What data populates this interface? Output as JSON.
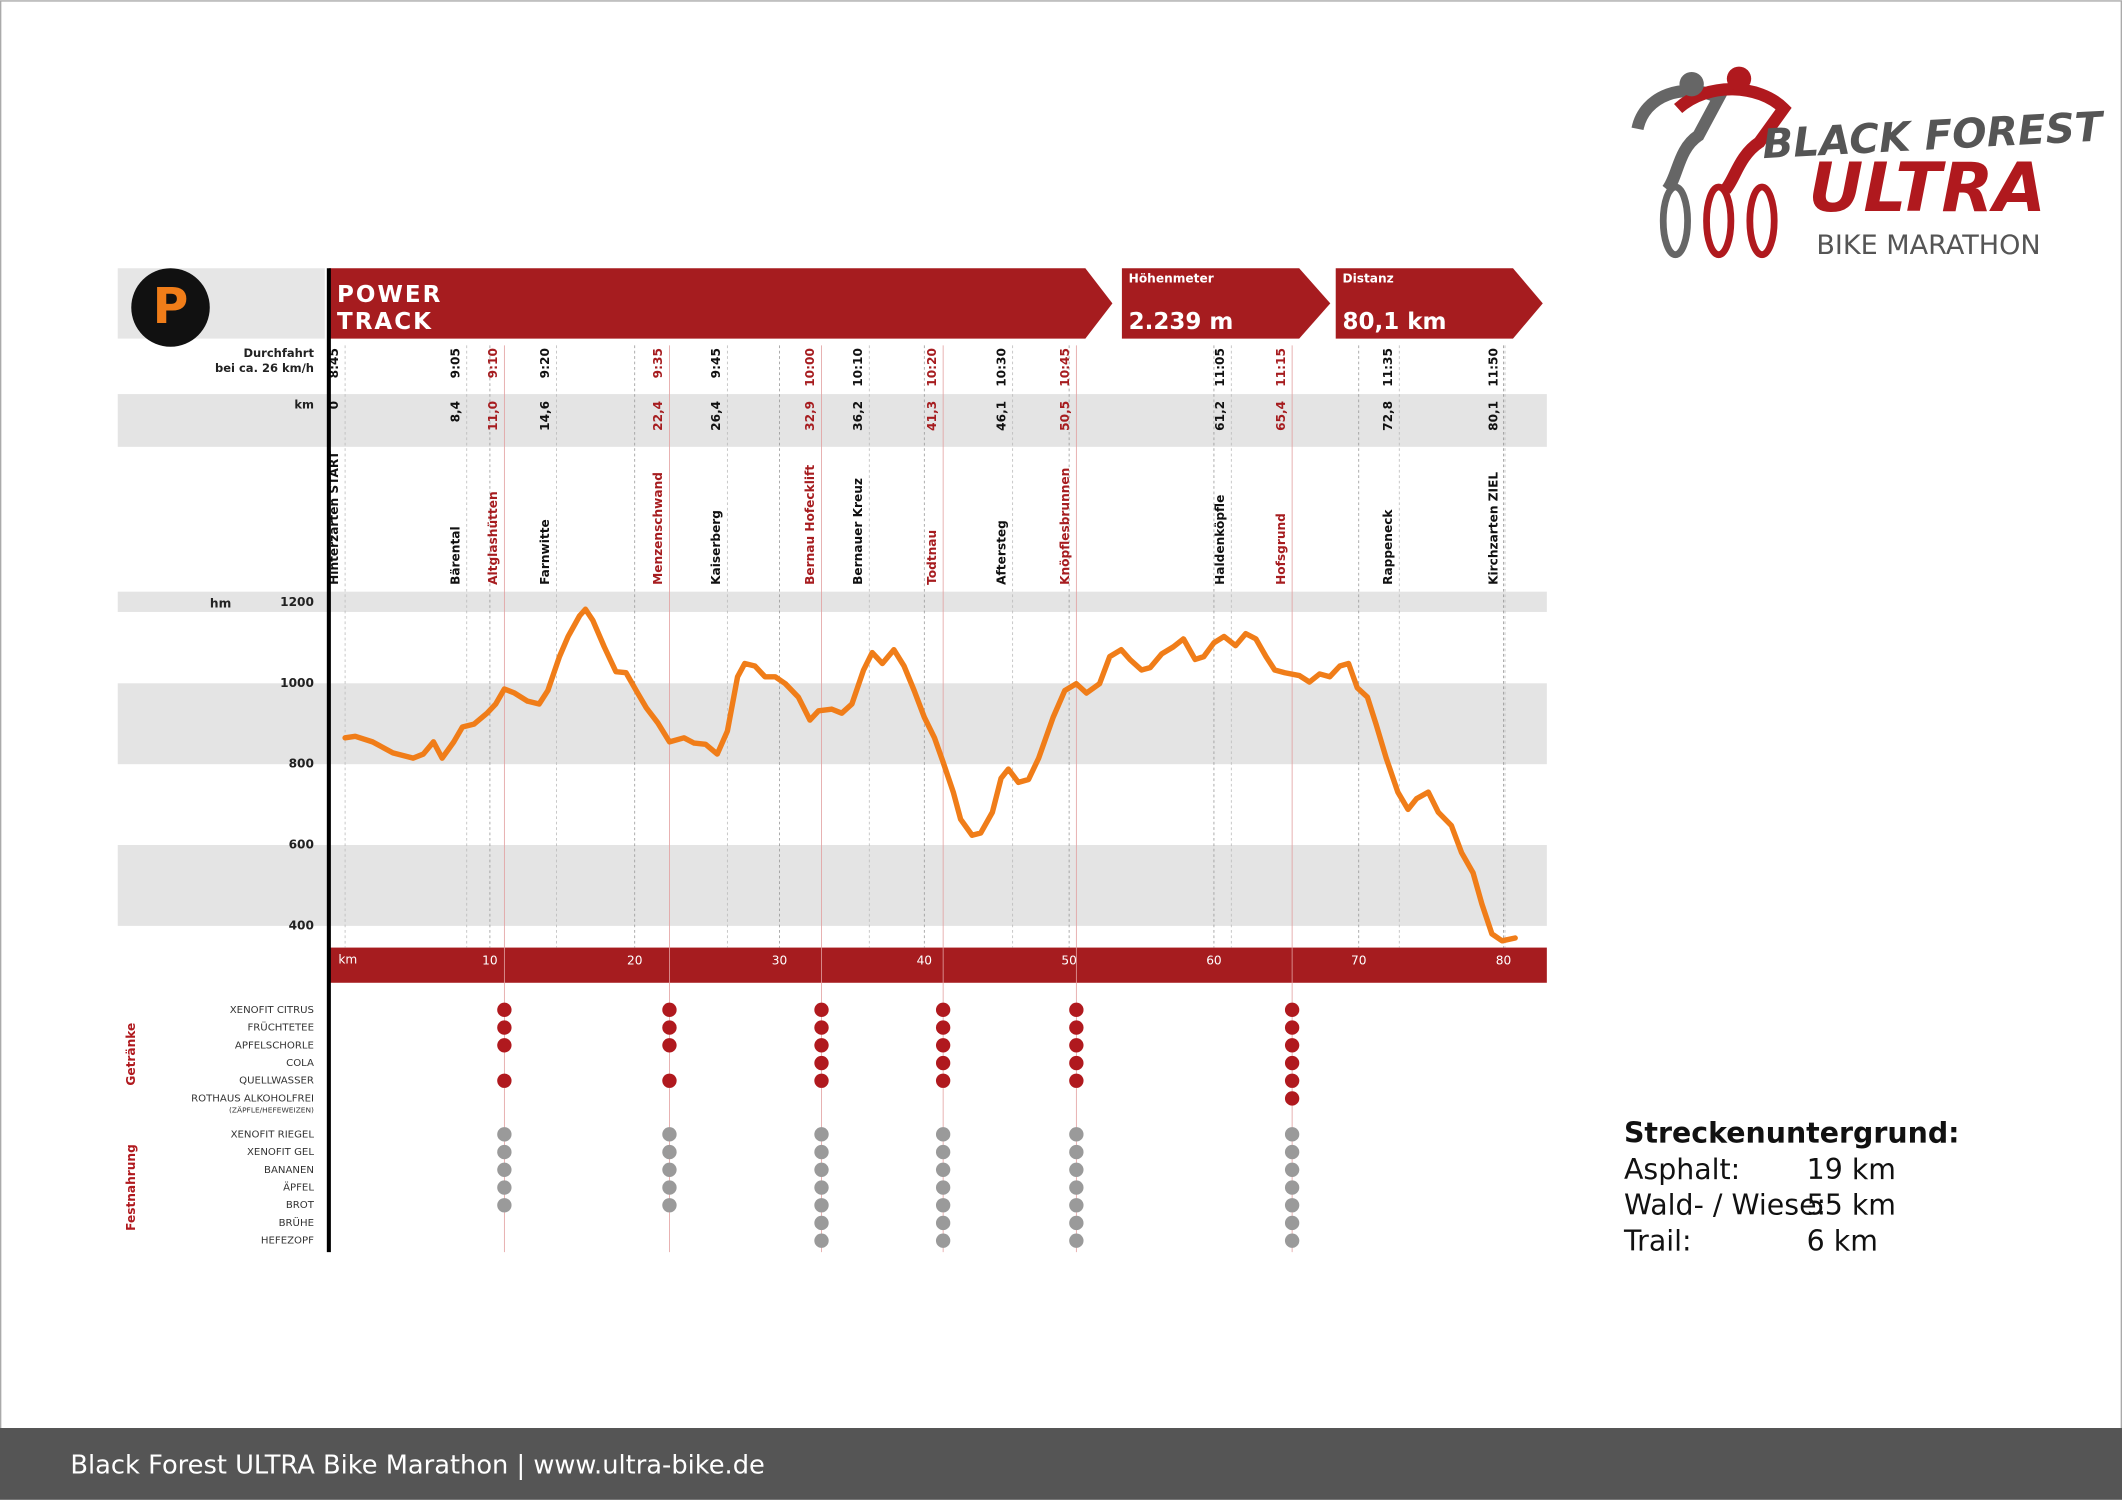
{
  "header": {
    "badge": "P",
    "title_lines": [
      "POWER",
      "TRACK"
    ],
    "elevation_gain": {
      "label": "Höhenmeter",
      "value": "2.239 m"
    },
    "distance": {
      "label": "Distanz",
      "value": "80,1 km"
    }
  },
  "logo": {
    "line1": "BLACK FOREST",
    "line2": "ULTRA",
    "line3": "BIKE MARATHON"
  },
  "rows": {
    "time_label_lines": [
      "Durchfahrt",
      "bei ca. 26 km/h"
    ],
    "km_label": "km"
  },
  "checkpoints": [
    {
      "name": "Hinterzarten START",
      "km": 0,
      "km_label": "0",
      "time": "8:45",
      "aid": false
    },
    {
      "name": "Bärental",
      "km": 8.4,
      "km_label": "8,4",
      "time": "9:05",
      "aid": false
    },
    {
      "name": "Altglashütten",
      "km": 11.0,
      "km_label": "11,0",
      "time": "9:10",
      "aid": true
    },
    {
      "name": "Farnwitte",
      "km": 14.6,
      "km_label": "14,6",
      "time": "9:20",
      "aid": false
    },
    {
      "name": "Menzenschwand",
      "km": 22.4,
      "km_label": "22,4",
      "time": "9:35",
      "aid": true
    },
    {
      "name": "Kaiserberg",
      "km": 26.4,
      "km_label": "26,4",
      "time": "9:45",
      "aid": false
    },
    {
      "name": "Bernau Hofecklift",
      "km": 32.9,
      "km_label": "32,9",
      "time": "10:00",
      "aid": true
    },
    {
      "name": "Bernauer Kreuz",
      "km": 36.2,
      "km_label": "36,2",
      "time": "10:10",
      "aid": false
    },
    {
      "name": "Todtnau",
      "km": 41.3,
      "km_label": "41,3",
      "time": "10:20",
      "aid": true
    },
    {
      "name": "Aftersteg",
      "km": 46.1,
      "km_label": "46,1",
      "time": "10:30",
      "aid": false
    },
    {
      "name": "Knöpflesbrunnen",
      "km": 50.5,
      "km_label": "50,5",
      "time": "10:45",
      "aid": true
    },
    {
      "name": "Haldenköpfle",
      "km": 61.2,
      "km_label": "61,2",
      "time": "11:05",
      "aid": false
    },
    {
      "name": "Hofsgrund",
      "km": 65.4,
      "km_label": "65,4",
      "time": "11:15",
      "aid": true
    },
    {
      "name": "Rappeneck",
      "km": 72.8,
      "km_label": "72,8",
      "time": "11:35",
      "aid": false
    },
    {
      "name": "Kirchzarten ZIEL",
      "km": 80.1,
      "km_label": "80,1",
      "time": "11:50",
      "aid": false
    }
  ],
  "chart_data": {
    "type": "line",
    "y_label": "hm",
    "x_label": "km",
    "color": "#f07d19",
    "x": [
      0,
      0.7,
      1.9,
      3.3,
      4.7,
      5.4,
      6.1,
      6.7,
      7.5,
      8.1,
      8.9,
      9.8,
      10.4,
      11.0,
      11.7,
      12.6,
      13.4,
      14.0,
      14.8,
      15.4,
      16.2,
      16.6,
      17.1,
      17.9,
      18.7,
      19.4,
      20.1,
      20.8,
      21.6,
      22.4,
      23.4,
      24.1,
      24.9,
      25.7,
      26.4,
      27.1,
      27.6,
      28.3,
      29.0,
      29.7,
      30.4,
      31.3,
      32.1,
      32.7,
      33.6,
      34.3,
      35.0,
      35.8,
      36.4,
      37.1,
      37.9,
      38.6,
      39.3,
      40.0,
      40.7,
      41.3,
      42.0,
      42.5,
      43.3,
      43.9,
      44.7,
      45.3,
      45.8,
      46.5,
      47.2,
      47.9,
      48.9,
      49.7,
      50.5,
      51.2,
      52.1,
      52.8,
      53.6,
      54.2,
      55.0,
      55.6,
      56.4,
      57.2,
      57.9,
      58.7,
      59.3,
      60.0,
      60.7,
      61.5,
      62.2,
      62.9,
      63.6,
      64.2,
      64.9,
      65.9,
      66.6,
      67.3,
      68.0,
      68.7,
      69.3,
      69.9,
      70.6,
      71.2,
      71.9,
      72.7,
      73.4,
      74.0,
      74.8,
      75.5,
      76.4,
      77.1,
      77.9,
      78.5,
      79.2,
      79.9,
      80.8
    ],
    "values": [
      865,
      869,
      855,
      828,
      815,
      825,
      855,
      815,
      855,
      892,
      899,
      926,
      949,
      986,
      976,
      956,
      949,
      982,
      1066,
      1116,
      1167,
      1183,
      1156,
      1090,
      1029,
      1026,
      982,
      939,
      902,
      855,
      865,
      852,
      849,
      825,
      882,
      1016,
      1049,
      1043,
      1016,
      1016,
      999,
      966,
      909,
      932,
      936,
      926,
      949,
      1033,
      1076,
      1049,
      1083,
      1043,
      982,
      916,
      865,
      805,
      731,
      664,
      624,
      630,
      681,
      765,
      788,
      755,
      762,
      815,
      916,
      982,
      999,
      976,
      999,
      1066,
      1083,
      1059,
      1033,
      1039,
      1073,
      1090,
      1110,
      1059,
      1066,
      1100,
      1116,
      1093,
      1123,
      1110,
      1066,
      1033,
      1026,
      1019,
      1003,
      1023,
      1016,
      1043,
      1049,
      989,
      966,
      899,
      815,
      731,
      688,
      715,
      731,
      681,
      648,
      581,
      531,
      454,
      380,
      363,
      370
    ],
    "xlim": [
      -1,
      83
    ],
    "xticks": [
      10,
      20,
      30,
      40,
      50,
      60,
      70,
      80
    ],
    "ylim": [
      350,
      1225
    ],
    "yticks": [
      400,
      600,
      800,
      1000,
      1200
    ]
  },
  "supplies": [
    {
      "group": "Getränke",
      "color": "#b0191e",
      "items": [
        {
          "name": "XENOFIT CITRUS",
          "available": [
            true,
            true,
            true,
            true,
            true,
            true
          ]
        },
        {
          "name": "FRÜCHTETEE",
          "available": [
            true,
            true,
            true,
            true,
            true,
            true
          ]
        },
        {
          "name": "APFELSCHORLE",
          "available": [
            true,
            true,
            true,
            true,
            true,
            true
          ]
        },
        {
          "name": "COLA",
          "available": [
            false,
            false,
            true,
            true,
            true,
            true
          ]
        },
        {
          "name": "QUELLWASSER",
          "available": [
            true,
            true,
            true,
            true,
            true,
            true
          ]
        },
        {
          "name": "ROTHAUS ALKOHOLFREI",
          "note": "(ZÄPFLE/HEFEWEIZEN)",
          "available": [
            false,
            false,
            false,
            false,
            false,
            true
          ]
        }
      ]
    },
    {
      "group": "Festnahrung",
      "color": "#9a9a9a",
      "items": [
        {
          "name": "XENOFIT RIEGEL",
          "available": [
            true,
            true,
            true,
            true,
            true,
            true
          ]
        },
        {
          "name": "XENOFIT GEL",
          "available": [
            true,
            true,
            true,
            true,
            true,
            true
          ]
        },
        {
          "name": "BANANEN",
          "available": [
            true,
            true,
            true,
            true,
            true,
            true
          ]
        },
        {
          "name": "ÄPFEL",
          "available": [
            true,
            true,
            true,
            true,
            true,
            true
          ]
        },
        {
          "name": "BROT",
          "available": [
            true,
            true,
            true,
            true,
            true,
            true
          ]
        },
        {
          "name": "BRÜHE",
          "available": [
            false,
            false,
            true,
            true,
            true,
            true
          ]
        },
        {
          "name": "HEFEZOPF",
          "available": [
            false,
            false,
            true,
            true,
            true,
            true
          ]
        }
      ]
    }
  ],
  "surface": {
    "title": "Streckenuntergrund:",
    "rows": [
      {
        "label": "Asphalt:",
        "value": "19 km"
      },
      {
        "label": "Wald- / Wiese:",
        "value": "55 km"
      },
      {
        "label": "Trail:",
        "value": "6 km"
      }
    ]
  },
  "footer": "Black Forest ULTRA Bike Marathon | www.ultra-bike.de"
}
